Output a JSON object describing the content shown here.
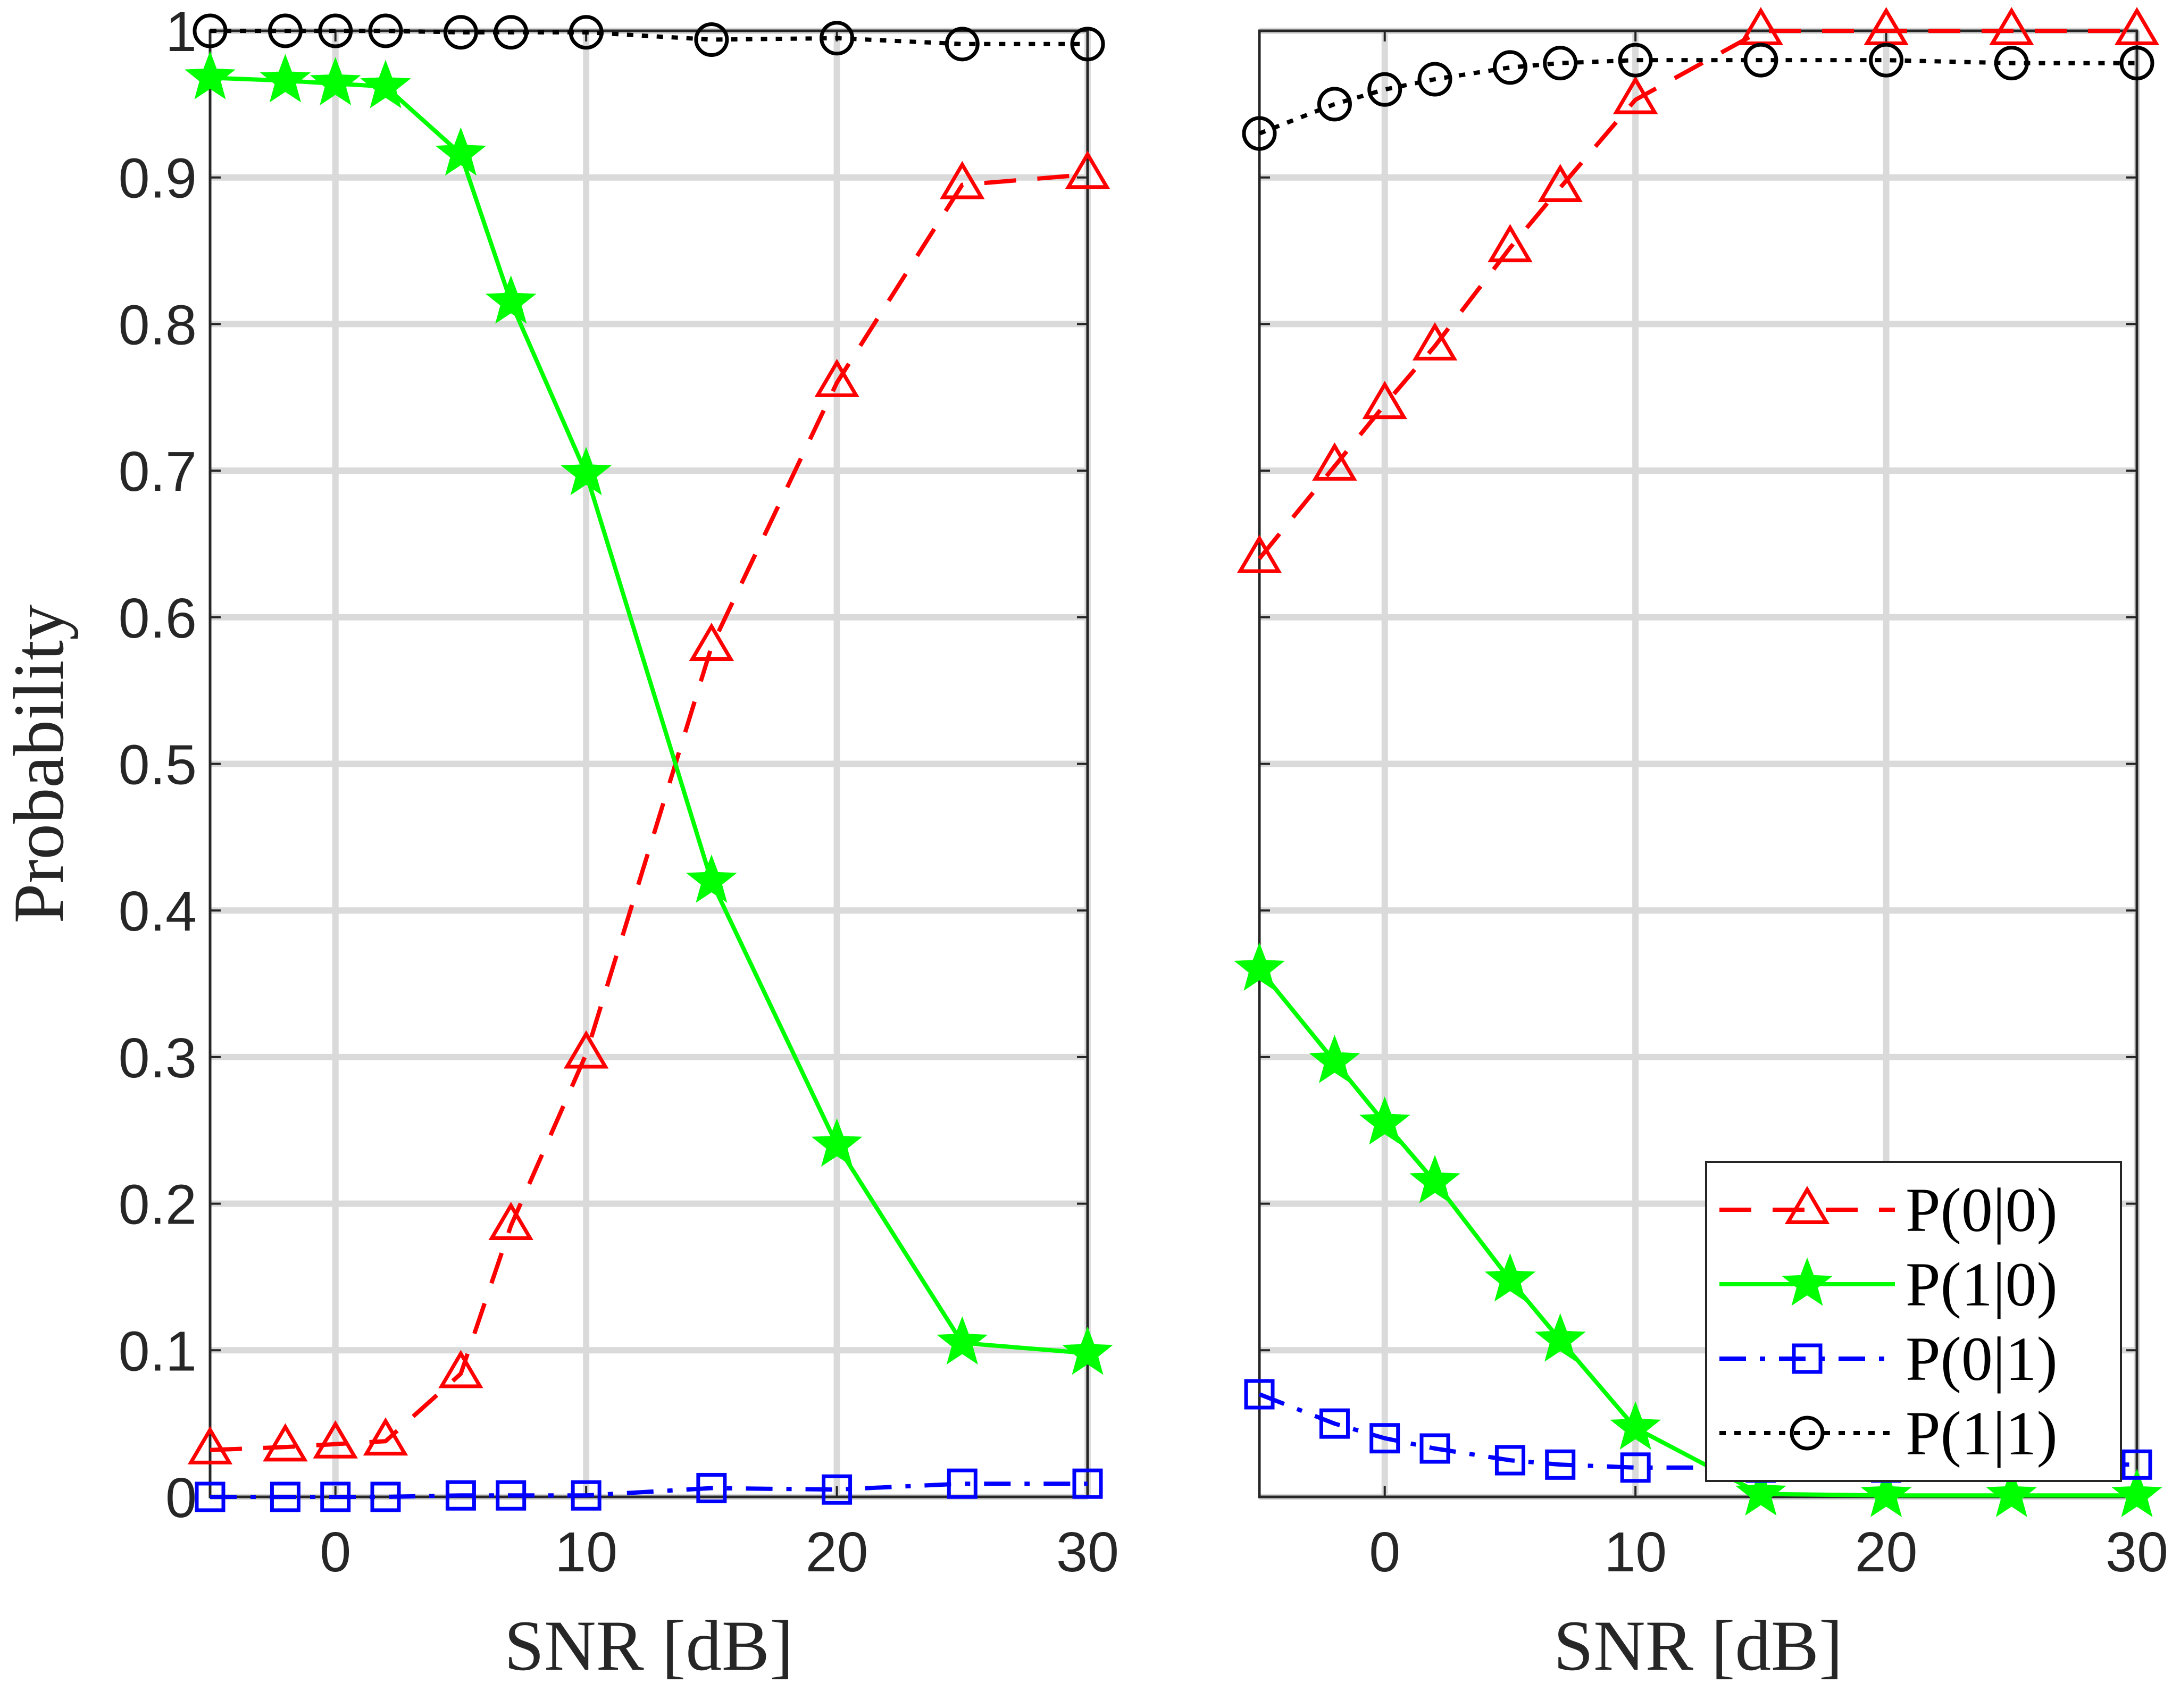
{
  "chart_data": [
    {
      "type": "line",
      "xlabel": "SNR [dB]",
      "ylabel": "Probability",
      "xlim": [
        -5,
        30
      ],
      "ylim": [
        0,
        1
      ],
      "xticks": [
        0,
        10,
        20,
        30
      ],
      "yticks": [
        0,
        0.1,
        0.2,
        0.3,
        0.4,
        0.5,
        0.6,
        0.7,
        0.8,
        0.9,
        1
      ],
      "ytick_labels": [
        "0",
        "0.1",
        "0.2",
        "0.3",
        "0.4",
        "0.5",
        "0.6",
        "0.7",
        "0.8",
        "0.9",
        "1"
      ],
      "grid": true,
      "x": [
        -5,
        -2,
        0,
        2,
        5,
        7,
        10,
        15,
        20,
        25,
        30
      ],
      "series": [
        {
          "name": "P(0|0)",
          "color": "#ff0000",
          "marker": "triangle",
          "dash": "dashed",
          "values": [
            0.032,
            0.034,
            0.036,
            0.038,
            0.084,
            0.185,
            0.302,
            0.58,
            0.76,
            0.895,
            0.902
          ]
        },
        {
          "name": "P(1|0)",
          "color": "#00ff00",
          "marker": "star",
          "dash": "solid",
          "values": [
            0.968,
            0.966,
            0.964,
            0.962,
            0.916,
            0.815,
            0.698,
            0.42,
            0.24,
            0.105,
            0.098
          ]
        },
        {
          "name": "P(0|1)",
          "color": "#0000ff",
          "marker": "square",
          "dash": "dashdot",
          "values": [
            0.0,
            0.0,
            0.0,
            0.0,
            0.001,
            0.001,
            0.001,
            0.006,
            0.005,
            0.009,
            0.009
          ]
        },
        {
          "name": "P(1|1)",
          "color": "#000000",
          "marker": "circle",
          "dash": "dotted",
          "values": [
            1.0,
            1.0,
            1.0,
            1.0,
            0.999,
            0.999,
            0.999,
            0.994,
            0.995,
            0.991,
            0.991
          ]
        }
      ]
    },
    {
      "type": "line",
      "xlabel": "SNR [dB]",
      "ylabel": "",
      "xlim": [
        -5,
        30
      ],
      "ylim": [
        0,
        1
      ],
      "xticks": [
        0,
        10,
        20,
        30
      ],
      "yticks": [
        0,
        0.1,
        0.2,
        0.3,
        0.4,
        0.5,
        0.6,
        0.7,
        0.8,
        0.9,
        1
      ],
      "ytick_labels": [],
      "grid": true,
      "legend": "bottom-right",
      "x": [
        -5,
        -2,
        0,
        2,
        5,
        7,
        10,
        15,
        20,
        25,
        30
      ],
      "series": [
        {
          "name": "P(0|0)",
          "color": "#ff0000",
          "marker": "triangle",
          "dash": "dashed",
          "values": [
            0.64,
            0.703,
            0.745,
            0.785,
            0.852,
            0.893,
            0.953,
            1.0,
            1.0,
            1.0,
            1.0
          ]
        },
        {
          "name": "P(1|0)",
          "color": "#00ff00",
          "marker": "star",
          "dash": "solid",
          "values": [
            0.36,
            0.297,
            0.255,
            0.215,
            0.148,
            0.107,
            0.047,
            0.002,
            0.001,
            0.001,
            0.001
          ]
        },
        {
          "name": "P(0|1)",
          "color": "#0000ff",
          "marker": "square",
          "dash": "dashdot",
          "values": [
            0.07,
            0.05,
            0.04,
            0.033,
            0.025,
            0.022,
            0.02,
            0.02,
            0.02,
            0.022,
            0.022
          ]
        },
        {
          "name": "P(1|1)",
          "color": "#000000",
          "marker": "circle",
          "dash": "dotted",
          "values": [
            0.93,
            0.95,
            0.96,
            0.967,
            0.975,
            0.978,
            0.98,
            0.98,
            0.98,
            0.978,
            0.978
          ]
        }
      ]
    }
  ]
}
